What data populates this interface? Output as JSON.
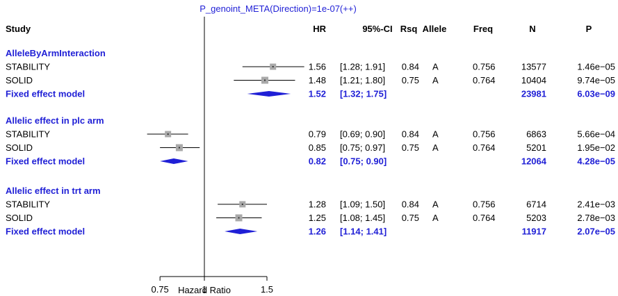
{
  "chart_data": {
    "type": "forest",
    "title": "P_genoint_META(Direction)=1e-07(++)",
    "xlabel": "Hazard Ratio",
    "x_scale": "log",
    "xlim": [
      0.75,
      1.5
    ],
    "xticks": [
      0.75,
      1,
      1.5
    ],
    "xtick_labels": [
      "0.75",
      "1",
      "1.5"
    ],
    "reference_line": 1,
    "columns": [
      "Study",
      "HR",
      "95%-CI",
      "Rsq",
      "Allele",
      "Freq",
      "N",
      "P"
    ],
    "colors": {
      "text": "#000000",
      "summary": "#1f1fd6",
      "box": "#a9a9a9"
    },
    "groups": [
      {
        "name": "AlleleByArmInteraction",
        "studies": [
          {
            "study": "STABILITY",
            "hr": 1.56,
            "lo": 1.28,
            "hi": 1.91,
            "hr_text": "1.56",
            "ci_text": "[1.28; 1.91]",
            "rsq": "0.84",
            "allele": "A",
            "freq": "0.756",
            "n": "13577",
            "p": "1.46e−05"
          },
          {
            "study": "SOLID",
            "hr": 1.48,
            "lo": 1.21,
            "hi": 1.8,
            "hr_text": "1.48",
            "ci_text": "[1.21; 1.80]",
            "rsq": "0.75",
            "allele": "A",
            "freq": "0.764",
            "n": "10404",
            "p": "9.74e−05"
          }
        ],
        "summary": {
          "label": "Fixed effect model",
          "hr": 1.52,
          "lo": 1.32,
          "hi": 1.75,
          "hr_text": "1.52",
          "ci_text": "[1.32; 1.75]",
          "n": "23981",
          "p": "6.03e−09"
        }
      },
      {
        "name": "Allelic effect in plc arm",
        "studies": [
          {
            "study": "STABILITY",
            "hr": 0.79,
            "lo": 0.69,
            "hi": 0.9,
            "hr_text": "0.79",
            "ci_text": "[0.69; 0.90]",
            "rsq": "0.84",
            "allele": "A",
            "freq": "0.756",
            "n": "6863",
            "p": "5.66e−04"
          },
          {
            "study": "SOLID",
            "hr": 0.85,
            "lo": 0.75,
            "hi": 0.97,
            "hr_text": "0.85",
            "ci_text": "[0.75; 0.97]",
            "rsq": "0.75",
            "allele": "A",
            "freq": "0.764",
            "n": "5201",
            "p": "1.95e−02"
          }
        ],
        "summary": {
          "label": "Fixed effect model",
          "hr": 0.82,
          "lo": 0.75,
          "hi": 0.9,
          "hr_text": "0.82",
          "ci_text": "[0.75; 0.90]",
          "n": "12064",
          "p": "4.28e−05"
        }
      },
      {
        "name": "Allelic effect in trt arm",
        "studies": [
          {
            "study": "STABILITY",
            "hr": 1.28,
            "lo": 1.09,
            "hi": 1.5,
            "hr_text": "1.28",
            "ci_text": "[1.09; 1.50]",
            "rsq": "0.84",
            "allele": "A",
            "freq": "0.756",
            "n": "6714",
            "p": "2.41e−03"
          },
          {
            "study": "SOLID",
            "hr": 1.25,
            "lo": 1.08,
            "hi": 1.45,
            "hr_text": "1.25",
            "ci_text": "[1.08; 1.45]",
            "rsq": "0.75",
            "allele": "A",
            "freq": "0.764",
            "n": "5203",
            "p": "2.78e−03"
          }
        ],
        "summary": {
          "label": "Fixed effect model",
          "hr": 1.26,
          "lo": 1.14,
          "hi": 1.41,
          "hr_text": "1.26",
          "ci_text": "[1.14; 1.41]",
          "n": "11917",
          "p": "2.07e−05"
        }
      }
    ]
  }
}
